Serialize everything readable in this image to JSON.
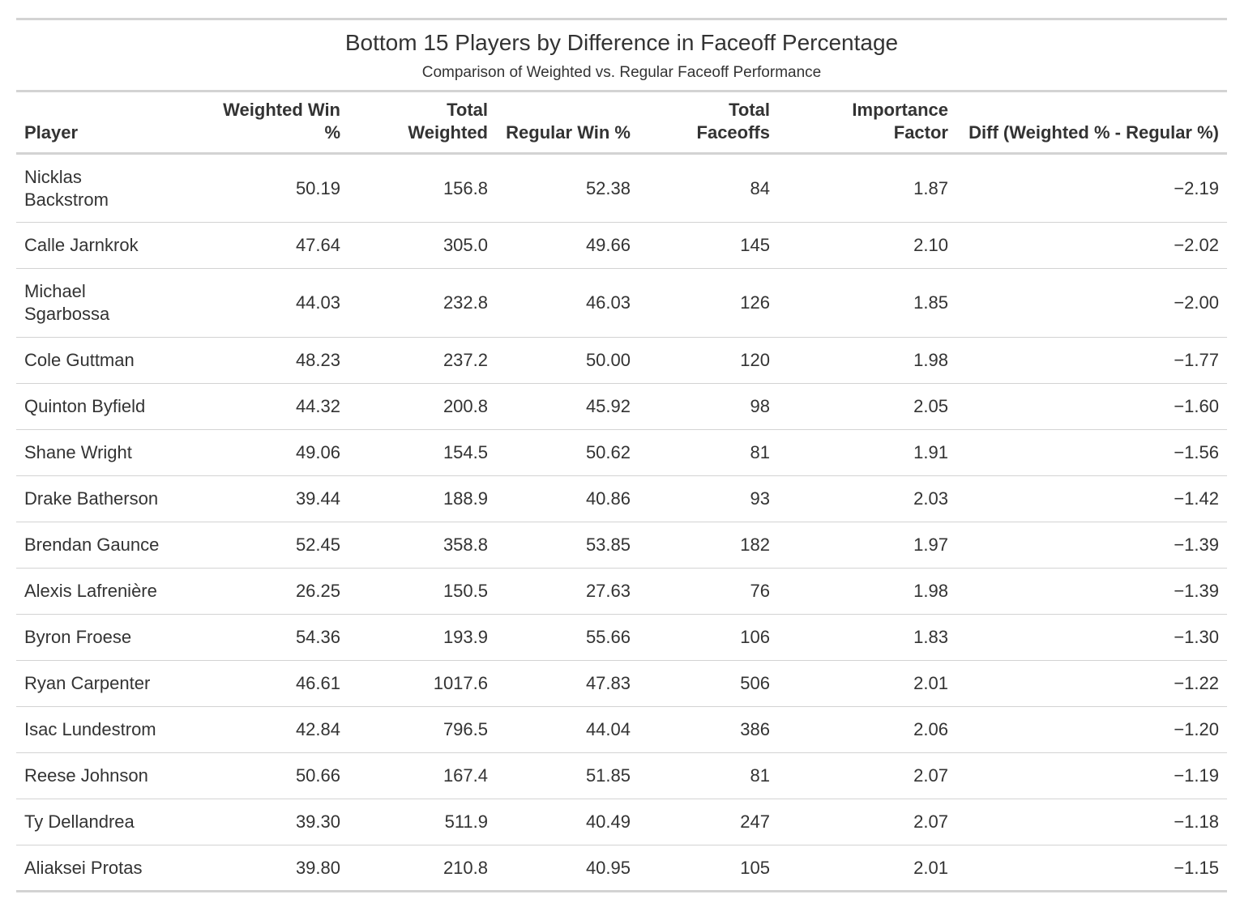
{
  "chart_data": {
    "type": "table",
    "title": "Bottom 15 Players by Difference in Faceoff Percentage",
    "subtitle": "Comparison of Weighted vs. Regular Faceoff Performance",
    "columns": [
      "Player",
      "Weighted Win %",
      "Total Weighted",
      "Regular Win %",
      "Total Faceoffs",
      "Importance Factor",
      "Diff (Weighted % - Regular %)"
    ],
    "rows": [
      [
        "Nicklas Backstrom",
        "50.19",
        "156.8",
        "52.38",
        "84",
        "1.87",
        "−2.19"
      ],
      [
        "Calle Jarnkrok",
        "47.64",
        "305.0",
        "49.66",
        "145",
        "2.10",
        "−2.02"
      ],
      [
        "Michael Sgarbossa",
        "44.03",
        "232.8",
        "46.03",
        "126",
        "1.85",
        "−2.00"
      ],
      [
        "Cole Guttman",
        "48.23",
        "237.2",
        "50.00",
        "120",
        "1.98",
        "−1.77"
      ],
      [
        "Quinton Byfield",
        "44.32",
        "200.8",
        "45.92",
        "98",
        "2.05",
        "−1.60"
      ],
      [
        "Shane Wright",
        "49.06",
        "154.5",
        "50.62",
        "81",
        "1.91",
        "−1.56"
      ],
      [
        "Drake Batherson",
        "39.44",
        "188.9",
        "40.86",
        "93",
        "2.03",
        "−1.42"
      ],
      [
        "Brendan Gaunce",
        "52.45",
        "358.8",
        "53.85",
        "182",
        "1.97",
        "−1.39"
      ],
      [
        "Alexis Lafrenière",
        "26.25",
        "150.5",
        "27.63",
        "76",
        "1.98",
        "−1.39"
      ],
      [
        "Byron Froese",
        "54.36",
        "193.9",
        "55.66",
        "106",
        "1.83",
        "−1.30"
      ],
      [
        "Ryan Carpenter",
        "46.61",
        "1017.6",
        "47.83",
        "506",
        "2.01",
        "−1.22"
      ],
      [
        "Isac Lundestrom",
        "42.84",
        "796.5",
        "44.04",
        "386",
        "2.06",
        "−1.20"
      ],
      [
        "Reese Johnson",
        "50.66",
        "167.4",
        "51.85",
        "81",
        "2.07",
        "−1.19"
      ],
      [
        "Ty Dellandrea",
        "39.30",
        "511.9",
        "40.49",
        "247",
        "2.07",
        "−1.18"
      ],
      [
        "Aliaksei Protas",
        "39.80",
        "210.8",
        "40.95",
        "105",
        "2.01",
        "−1.15"
      ]
    ]
  }
}
